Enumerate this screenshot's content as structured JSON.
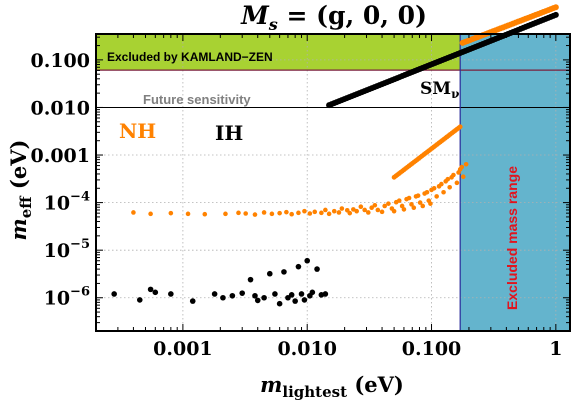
{
  "chart_data": {
    "type": "scatter",
    "title": "M_s = (g, 0, 0)",
    "title_main": "M",
    "title_sub": "s",
    "title_rest": " = (g, 0, 0)",
    "xlabel_main": "m",
    "xlabel_sub": "lightest",
    "xlabel_unit": " (eV)",
    "ylabel_main": "m",
    "ylabel_sub": "eff",
    "ylabel_unit": " (eV)",
    "x_scale": "log",
    "y_scale": "log",
    "xlim": [
      0.0002,
      1.3
    ],
    "ylim": [
      2e-07,
      0.35
    ],
    "grid": true,
    "x_ticks": [
      {
        "value": 0.001,
        "label": "0.001"
      },
      {
        "value": 0.01,
        "label": "0.010"
      },
      {
        "value": 0.1,
        "label": "0.100"
      },
      {
        "value": 1,
        "label": "1"
      }
    ],
    "y_ticks": [
      {
        "value": 0.1,
        "label": "0.100",
        "base": "0.100",
        "exp": ""
      },
      {
        "value": 0.01,
        "label": "0.010",
        "base": "0.010",
        "exp": ""
      },
      {
        "value": 0.001,
        "label": "0.001",
        "base": "0.001",
        "exp": ""
      },
      {
        "value": 0.0001,
        "label": "10^-4",
        "base": "10",
        "exp": "−4"
      },
      {
        "value": 1e-05,
        "label": "10^-5",
        "base": "10",
        "exp": "−5"
      },
      {
        "value": 1e-06,
        "label": "10^-6",
        "base": "10",
        "exp": "−6"
      }
    ],
    "regions": {
      "kamland_label": "Excluded by KAMLAND−ZEN",
      "kamland_ymin": 0.061,
      "kamland_color": "#a8d232",
      "future_label": "Future sensitivity",
      "future_y": 0.01,
      "sm_label_main": "SM",
      "sm_label_sub": "ν",
      "mass_label": "Excluded mass range",
      "mass_xmin": 0.17,
      "mass_color": "#64b4cd",
      "mass_text_color": "#e1141e"
    },
    "series": [
      {
        "name": "NH",
        "color": "#ff8200",
        "points": [
          [
            0.0004,
            6.2e-05
          ],
          [
            0.00055,
            5.8e-05
          ],
          [
            0.0008,
            6e-05
          ],
          [
            0.0011,
            5.8e-05
          ],
          [
            0.0015,
            5.7e-05
          ],
          [
            0.0022,
            5.8e-05
          ],
          [
            0.0028,
            6.1e-05
          ],
          [
            0.0032,
            5.9e-05
          ],
          [
            0.0038,
            5.6e-05
          ],
          [
            0.0045,
            6.2e-05
          ],
          [
            0.0052,
            5.8e-05
          ],
          [
            0.006,
            6e-05
          ],
          [
            0.0068,
            6.3e-05
          ],
          [
            0.0075,
            5.7e-05
          ],
          [
            0.0085,
            6.1e-05
          ],
          [
            0.0095,
            6.6e-05
          ],
          [
            0.0105,
            5.9e-05
          ],
          [
            0.0115,
            6.4e-05
          ],
          [
            0.013,
            6.1e-05
          ],
          [
            0.014,
            7e-05
          ],
          [
            0.015,
            5.8e-05
          ],
          [
            0.0165,
            6.6e-05
          ],
          [
            0.018,
            6.2e-05
          ],
          [
            0.019,
            7.5e-05
          ],
          [
            0.021,
            6.9e-05
          ],
          [
            0.022,
            6e-05
          ],
          [
            0.0235,
            7.2e-05
          ],
          [
            0.025,
            6.6e-05
          ],
          [
            0.027,
            8.2e-05
          ],
          [
            0.029,
            7e-05
          ],
          [
            0.031,
            6.2e-05
          ],
          [
            0.033,
            7.8e-05
          ],
          [
            0.035,
            8.8e-05
          ],
          [
            0.037,
            7e-05
          ],
          [
            0.04,
            6.4e-05
          ],
          [
            0.042,
            8.5e-05
          ],
          [
            0.045,
            9.5e-05
          ],
          [
            0.048,
            7.5e-05
          ],
          [
            0.05,
            6.6e-05
          ],
          [
            0.052,
            0.000102
          ],
          [
            0.055,
            0.00011
          ],
          [
            0.058,
            8.5e-05
          ],
          [
            0.06,
            7.2e-05
          ],
          [
            0.063,
            0.000118
          ],
          [
            0.066,
            0.000125
          ],
          [
            0.069,
            9.2e-05
          ],
          [
            0.072,
            7.8e-05
          ],
          [
            0.075,
            0.000135
          ],
          [
            0.078,
            0.00014
          ],
          [
            0.081,
            0.0001
          ],
          [
            0.085,
            8.5e-05
          ],
          [
            0.088,
            0.000155
          ],
          [
            0.092,
            0.000165
          ],
          [
            0.095,
            0.00011
          ],
          [
            0.098,
            9.5e-05
          ],
          [
            0.1,
            0.000185
          ],
          [
            0.105,
            0.0002
          ],
          [
            0.11,
            0.000135
          ],
          [
            0.115,
            0.00022
          ],
          [
            0.12,
            0.000245
          ],
          [
            0.125,
            0.000165
          ],
          [
            0.13,
            0.00028
          ],
          [
            0.135,
            0.00031
          ],
          [
            0.14,
            0.00021
          ],
          [
            0.145,
            0.00034
          ],
          [
            0.15,
            0.00038
          ],
          [
            0.16,
            0.00026
          ],
          [
            0.165,
            0.00043
          ],
          [
            0.17,
            0.0005
          ],
          [
            0.175,
            0.00056
          ],
          [
            0.18,
            0.00035
          ],
          [
            0.19,
            0.00064
          ]
        ]
      },
      {
        "name": "IH",
        "color": "#000000",
        "points": [
          [
            0.00028,
            1.2e-06
          ],
          [
            0.00045,
            9e-07
          ],
          [
            0.00055,
            1.5e-06
          ],
          [
            0.0006,
            1.3e-06
          ],
          [
            0.0008,
            1.2e-06
          ],
          [
            0.0012,
            8.5e-07
          ],
          [
            0.0018,
            1.2e-06
          ],
          [
            0.0021,
            1e-06
          ],
          [
            0.0025,
            1.1e-06
          ],
          [
            0.003,
            1.25e-06
          ],
          [
            0.0035,
            2.4e-06
          ],
          [
            0.0038,
            1.1e-06
          ],
          [
            0.004,
            8.8e-07
          ],
          [
            0.0045,
            1e-06
          ],
          [
            0.005,
            3.2e-06
          ],
          [
            0.0055,
            1.2e-06
          ],
          [
            0.006,
            7.5e-07
          ],
          [
            0.0065,
            3.5e-06
          ],
          [
            0.007,
            1e-06
          ],
          [
            0.0075,
            1.15e-06
          ],
          [
            0.008,
            8.5e-07
          ],
          [
            0.0085,
            4.5e-06
          ],
          [
            0.009,
            1.2e-06
          ],
          [
            0.0095,
            9e-07
          ],
          [
            0.01,
            6e-06
          ],
          [
            0.0105,
            1.1e-06
          ],
          [
            0.011,
            1.3e-06
          ],
          [
            0.012,
            4e-06
          ],
          [
            0.013,
            1.15e-06
          ],
          [
            0.014,
            1.2e-06
          ]
        ]
      }
    ]
  },
  "legend": {
    "nh_label": "NH",
    "ih_label": "IH",
    "placement": "top-left"
  }
}
